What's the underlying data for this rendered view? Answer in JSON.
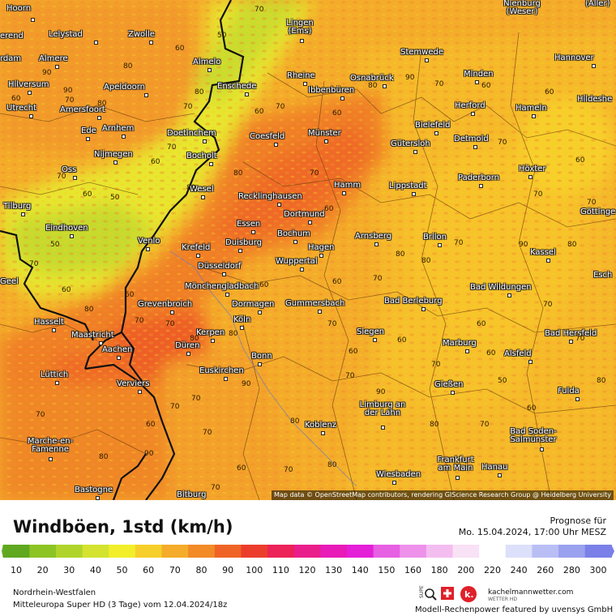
{
  "title": "Windböen, 1std (km/h)",
  "forecast_label": "Prognose für",
  "forecast_date": "Mo. 15.04.2024, 17:00 Uhr MESZ",
  "region": "Nordrhein-Westfalen",
  "model": "Mitteleuropa Super HD (3 Tage) vom 12.04.2024/18z",
  "attribution": "Map data © OpenStreetMap contributors, rendering GIScience Research Group @ Heidelberg University",
  "brand": "kachelmannwetter.com",
  "brand_sub": "WETTER HD",
  "powered": "Modell-Rechenpower featured by uvensys GmbH",
  "scale": {
    "ticks": [
      "10",
      "20",
      "30",
      "40",
      "50",
      "60",
      "70",
      "80",
      "90",
      "100",
      "110",
      "120",
      "130",
      "140",
      "150",
      "160",
      "180",
      "200",
      "220",
      "240",
      "260",
      "280",
      "300"
    ],
    "colors": [
      "#5fa81f",
      "#8cc424",
      "#b0d42a",
      "#d3e330",
      "#f2ef2a",
      "#f7cf2a",
      "#f4ac2a",
      "#f28a28",
      "#ef6426",
      "#ec3d2c",
      "#ec2258",
      "#ea1e8a",
      "#e81ab8",
      "#e41fd8",
      "#e75fe3",
      "#ee91ea",
      "#f4bdf0",
      "#f9e1f6",
      "#ffffff",
      "#dde0fa",
      "#b9bff5",
      "#9aa1ef",
      "#7b80e8"
    ]
  },
  "cities": [
    {
      "name": "Hoorn"
    },
    {
      "name": "Lelystad"
    },
    {
      "name": "Zwolle"
    },
    {
      "name": "Lingen (Ems)"
    },
    {
      "name": "Nienburg (Weser)"
    },
    {
      "name": "erend"
    },
    {
      "name": "Almere"
    },
    {
      "name": "Almelo"
    },
    {
      "name": "Stemwede"
    },
    {
      "name": "Hannover"
    },
    {
      "name": "rdam"
    },
    {
      "name": "Hilversum"
    },
    {
      "name": "Apeldoorn"
    },
    {
      "name": "Enschede"
    },
    {
      "name": "Rheine"
    },
    {
      "name": "Osnabrück"
    },
    {
      "name": "Minden"
    },
    {
      "name": "Hildeshe"
    },
    {
      "name": "Utrecht"
    },
    {
      "name": "Amersfoort"
    },
    {
      "name": "Ibbenbüren"
    },
    {
      "name": "Herford"
    },
    {
      "name": "Hameln"
    },
    {
      "name": "Ede"
    },
    {
      "name": "Arnhem"
    },
    {
      "name": "Doetinchem"
    },
    {
      "name": "Bielefeld"
    },
    {
      "name": "Detmold"
    },
    {
      "name": "Nijmegen"
    },
    {
      "name": "Coesfeld"
    },
    {
      "name": "Münster"
    },
    {
      "name": "Gütersloh"
    },
    {
      "name": "Bocholt"
    },
    {
      "name": "Oss"
    },
    {
      "name": "Höxter"
    },
    {
      "name": "Paderborn"
    },
    {
      "name": "Wesel"
    },
    {
      "name": "Hamm"
    },
    {
      "name": "Lippstadt"
    },
    {
      "name": "Recklinghausen"
    },
    {
      "name": "Tilburg"
    },
    {
      "name": "Göttinge"
    },
    {
      "name": "Essen"
    },
    {
      "name": "Dortmund"
    },
    {
      "name": "Eindhoven"
    },
    {
      "name": "Bochum"
    },
    {
      "name": "Arnsberg"
    },
    {
      "name": "Brilon"
    },
    {
      "name": "Venlo"
    },
    {
      "name": "Duisburg"
    },
    {
      "name": "Hagen"
    },
    {
      "name": "Krefeld"
    },
    {
      "name": "Kassel"
    },
    {
      "name": "Wuppertal"
    },
    {
      "name": "Düsseldorf"
    },
    {
      "name": "Geel"
    },
    {
      "name": "Mönchengladbach"
    },
    {
      "name": "Bad Wildungen"
    },
    {
      "name": "Esch"
    },
    {
      "name": "Grevenbroich"
    },
    {
      "name": "Dormagen"
    },
    {
      "name": "Gummersbach"
    },
    {
      "name": "Bad Berleburg"
    },
    {
      "name": "Hasselt"
    },
    {
      "name": "Köln"
    },
    {
      "name": "Maastricht"
    },
    {
      "name": "Kerpen"
    },
    {
      "name": "Siegen"
    },
    {
      "name": "Bad Hersfeld"
    },
    {
      "name": "Aachen"
    },
    {
      "name": "Düren"
    },
    {
      "name": "Marburg"
    },
    {
      "name": "Alsfeld"
    },
    {
      "name": "Bonn"
    },
    {
      "name": "Lüttich"
    },
    {
      "name": "Verviers"
    },
    {
      "name": "Euskirchen"
    },
    {
      "name": "Gießen"
    },
    {
      "name": "Fulda"
    },
    {
      "name": "Limburg an der Lahn"
    },
    {
      "name": "Koblenz"
    },
    {
      "name": "Marche-en-Famenne"
    },
    {
      "name": "Bad Soden-Salmünster"
    },
    {
      "name": "Frankfurt am Main"
    },
    {
      "name": "Hanau"
    },
    {
      "name": "Wiesbaden"
    },
    {
      "name": "Bastogne"
    },
    {
      "name": "Bitburg"
    },
    {
      "name": "(Aller)"
    }
  ],
  "values": [
    "50",
    "70",
    "60",
    "80",
    "90",
    "60",
    "70",
    "80",
    "70",
    "90",
    "80",
    "70",
    "60",
    "50",
    "60",
    "70",
    "80",
    "80",
    "70",
    "60",
    "60",
    "70",
    "80",
    "90",
    "70",
    "60",
    "70",
    "60",
    "60",
    "70",
    "80",
    "70",
    "90",
    "80",
    "60",
    "70",
    "80",
    "70",
    "60",
    "50",
    "60",
    "70",
    "80",
    "70",
    "60",
    "70",
    "80",
    "70",
    "90",
    "70",
    "80",
    "80",
    "60",
    "70",
    "80",
    "90",
    "70",
    "60",
    "70",
    "80",
    "70",
    "60",
    "60",
    "70",
    "60",
    "60",
    "70",
    "50",
    "60",
    "70",
    "80",
    "70",
    "80",
    "70",
    "90",
    "60",
    "70"
  ]
}
